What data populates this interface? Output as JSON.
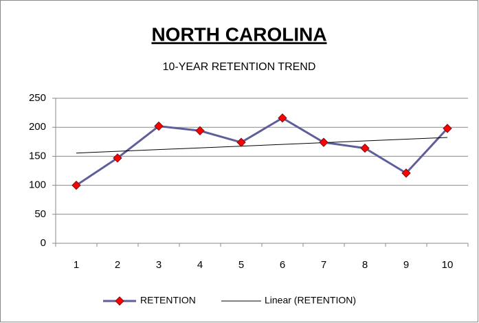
{
  "chart_data": {
    "type": "line",
    "title": "NORTH CAROLINA",
    "subtitle": "10-YEAR RETENTION TREND",
    "categories": [
      "1",
      "2",
      "3",
      "4",
      "5",
      "6",
      "7",
      "8",
      "9",
      "10"
    ],
    "series": [
      {
        "name": "RETENTION",
        "color": "#5e5e9a",
        "marker_color": "#ff0000",
        "values": [
          100,
          147,
          202,
          194,
          174,
          216,
          174,
          164,
          121,
          198
        ]
      }
    ],
    "trendline": {
      "name": "Linear (RETENTION)",
      "color": "#000000",
      "kind": "linear"
    },
    "ylim": [
      0,
      250
    ],
    "yticks": [
      0,
      50,
      100,
      150,
      200,
      250
    ],
    "grid": true,
    "legend": "bottom"
  }
}
